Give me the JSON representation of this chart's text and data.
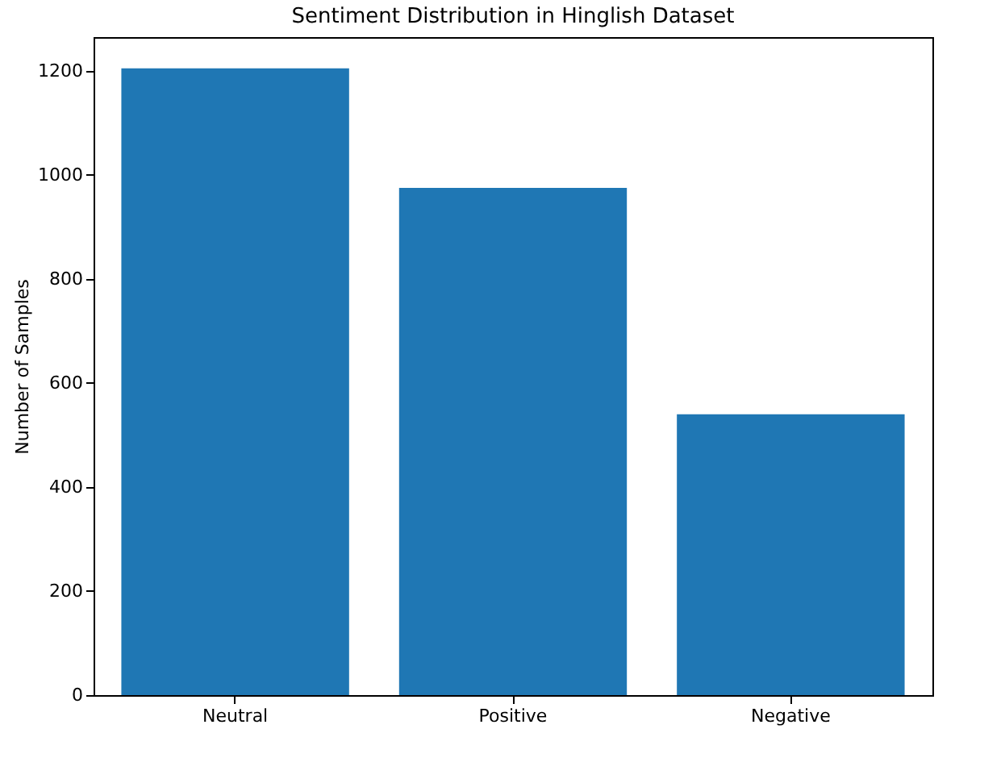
{
  "chart_data": {
    "type": "bar",
    "title": "Sentiment Distribution in Hinglish Dataset",
    "ylabel": "Number of Samples",
    "categories": [
      "Neutral",
      "Positive",
      "Negative"
    ],
    "values": [
      1205,
      975,
      540
    ],
    "color": "#1f77b4",
    "ylim": [
      0,
      1265
    ],
    "yticks": [
      0,
      200,
      400,
      600,
      800,
      1000,
      1200
    ],
    "grid": false
  }
}
